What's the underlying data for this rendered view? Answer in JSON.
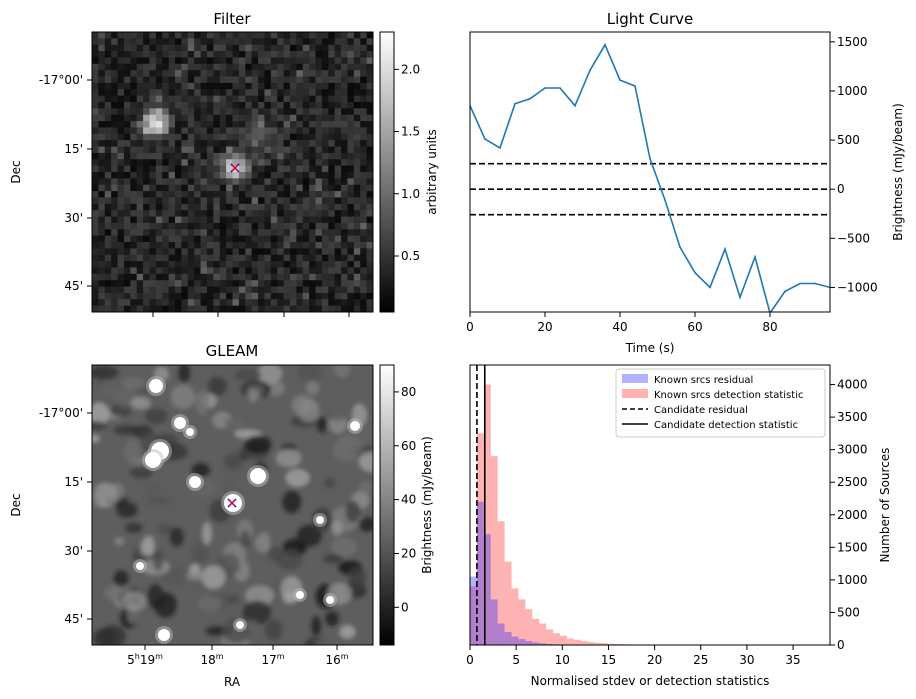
{
  "chart_data": [
    {
      "type": "heatmap",
      "title": "Filter",
      "ylabel": "Dec",
      "y_ticks": [
        "-17°00'",
        "15'",
        "30'",
        "45'"
      ],
      "colorbar": {
        "label": "arbitrary units",
        "ticks": [
          "0.5",
          "1.0",
          "1.5",
          "2.0"
        ],
        "range": [
          0.05,
          2.3
        ],
        "colormap": "gray"
      },
      "markers": [
        {
          "type": "x",
          "color": "#0000ff"
        },
        {
          "type": "x",
          "color": "#ff0000"
        }
      ]
    },
    {
      "type": "line",
      "title": "Light Curve",
      "xlabel": "Time (s)",
      "ylabel": "Brightness (mJy/beam)",
      "xlim": [
        0,
        96
      ],
      "ylim": [
        -1250,
        1600
      ],
      "x_ticks": [
        0,
        20,
        40,
        60,
        80
      ],
      "y_ticks": [
        -1000,
        -500,
        0,
        500,
        1000,
        1500
      ],
      "y_axis_side": "right",
      "series": [
        {
          "color": "#1f77b4",
          "x": [
            0,
            4,
            8,
            12,
            16,
            20,
            24,
            28,
            32,
            36,
            40,
            44,
            48,
            52,
            56,
            60,
            64,
            68,
            72,
            76,
            80,
            84,
            88,
            92,
            96
          ],
          "y": [
            850,
            510,
            420,
            870,
            920,
            1030,
            1030,
            850,
            1210,
            1470,
            1110,
            1050,
            310,
            -110,
            -590,
            -850,
            -1000,
            -610,
            -1100,
            -690,
            -1260,
            -1040,
            -960,
            -960,
            -1000
          ]
        }
      ],
      "hlines": [
        {
          "y": 260,
          "style": "dashed",
          "color": "#000000"
        },
        {
          "y": 0,
          "style": "dashed",
          "color": "#000000"
        },
        {
          "y": -260,
          "style": "dashed",
          "color": "#000000"
        }
      ]
    },
    {
      "type": "heatmap",
      "title": "GLEAM",
      "xlabel": "RA",
      "ylabel": "Dec",
      "x_ticks": [
        "5h19m",
        "18m",
        "17m",
        "16m"
      ],
      "y_ticks": [
        "-17°00'",
        "15'",
        "30'",
        "45'"
      ],
      "colorbar": {
        "label": "Brightness (mJy/beam)",
        "ticks": [
          "0",
          "20",
          "40",
          "60",
          "80"
        ],
        "range": [
          -14,
          90
        ],
        "colormap": "gray"
      },
      "markers": [
        {
          "type": "x",
          "color": "#0000ff"
        },
        {
          "type": "x",
          "color": "#ff0000"
        }
      ]
    },
    {
      "type": "bar",
      "xlabel": "Normalised stdev or detection statistics",
      "ylabel": "Number of Sources",
      "xlim": [
        0,
        39
      ],
      "ylim": [
        0,
        4300
      ],
      "x_ticks": [
        0,
        5,
        10,
        15,
        20,
        25,
        30,
        35
      ],
      "y_ticks": [
        0,
        500,
        1000,
        1500,
        2000,
        2500,
        3000,
        3500,
        4000
      ],
      "y_axis_side": "right",
      "bin_width": 0.75,
      "legend": {
        "placement": "top-right",
        "entries": [
          "Known srcs residual",
          "Known srcs detection statistic",
          "Candidate residual",
          "Candidate detection statistic"
        ]
      },
      "series": [
        {
          "name": "Known srcs residual",
          "color": "#0000ff",
          "alpha": 0.3,
          "bin_start": 0,
          "values": [
            1050,
            2200,
            1700,
            700,
            330,
            200,
            130,
            90,
            60,
            40,
            25,
            15,
            10,
            5,
            3
          ]
        },
        {
          "name": "Known srcs detection statistic",
          "color": "#ff0000",
          "alpha": 0.3,
          "bin_start": 0,
          "values": [
            900,
            3250,
            4000,
            2900,
            1900,
            1280,
            870,
            700,
            550,
            400,
            330,
            240,
            180,
            140,
            100,
            80,
            60,
            45,
            35,
            25,
            18,
            14,
            10,
            8,
            6,
            5,
            4,
            3,
            3,
            2,
            2,
            2,
            1,
            1,
            1,
            1,
            1,
            1,
            1,
            1,
            1,
            1,
            1,
            1,
            1,
            1,
            1,
            1,
            1,
            1
          ]
        }
      ],
      "vlines": [
        {
          "name": "Candidate residual",
          "x": 0.75,
          "style": "dashed",
          "color": "#000000"
        },
        {
          "name": "Candidate detection statistic",
          "x": 1.6,
          "style": "solid",
          "color": "#000000"
        }
      ]
    }
  ]
}
